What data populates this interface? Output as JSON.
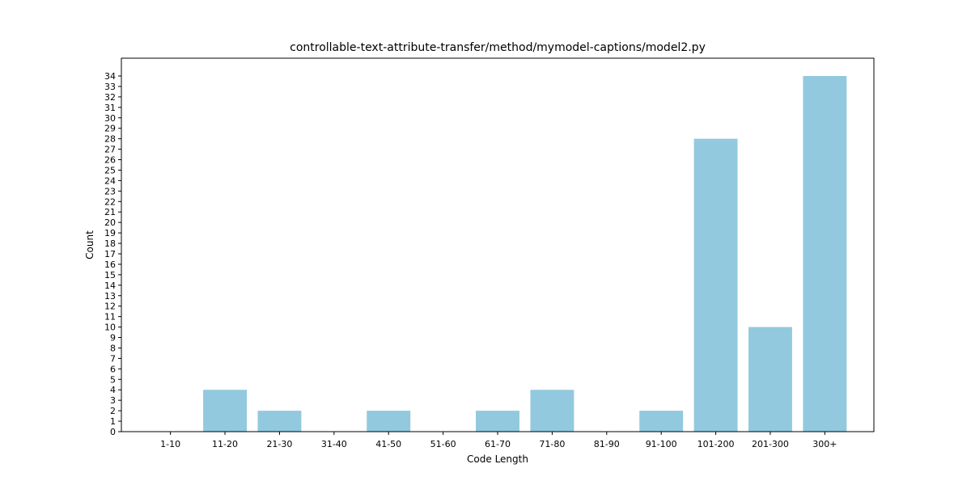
{
  "chart_data": {
    "type": "bar",
    "title": "controllable-text-attribute-transfer/method/mymodel-captions/model2.py",
    "xlabel": "Code Length",
    "ylabel": "Count",
    "categories": [
      "1-10",
      "11-20",
      "21-30",
      "31-40",
      "41-50",
      "51-60",
      "61-70",
      "71-80",
      "81-90",
      "91-100",
      "101-200",
      "201-300",
      "300+"
    ],
    "values": [
      0,
      4,
      2,
      0,
      2,
      0,
      2,
      4,
      0,
      2,
      28,
      10,
      34
    ],
    "ylim": [
      0,
      35.7
    ],
    "yticks": [
      0,
      1,
      2,
      3,
      4,
      5,
      6,
      7,
      8,
      9,
      10,
      11,
      12,
      13,
      14,
      15,
      16,
      17,
      18,
      19,
      20,
      21,
      22,
      23,
      24,
      25,
      26,
      27,
      28,
      29,
      30,
      31,
      32,
      33,
      34
    ],
    "bar_color": "#92c9de",
    "grid": false,
    "legend": "none"
  }
}
